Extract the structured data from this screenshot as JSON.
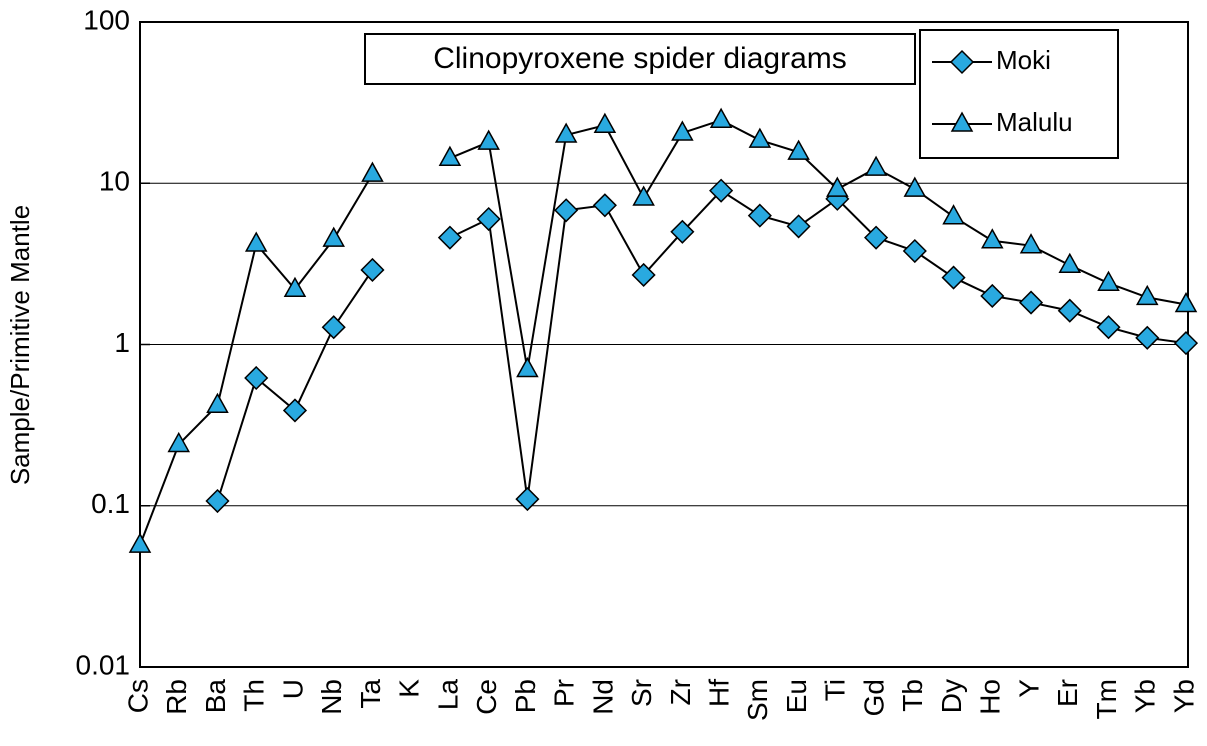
{
  "chart_data": {
    "type": "line",
    "title": "Clinopyroxene spider diagrams",
    "y_label": "Sample/Primitive Mantle",
    "categories": [
      "Cs",
      "Rb",
      "Ba",
      "Th",
      "U",
      "Nb",
      "Ta",
      "K",
      "La",
      "Ce",
      "Pb",
      "Pr",
      "Nd",
      "Sr",
      "Zr",
      "Hf",
      "Sm",
      "Eu",
      "Ti",
      "Gd",
      "Tb",
      "Dy",
      "Ho",
      "Y",
      "Er",
      "Tm",
      "Yb",
      "Yb"
    ],
    "series": [
      {
        "name": "Moki",
        "color": "#29a9e0",
        "marker": "diamond",
        "values": [
          null,
          null,
          0.107,
          0.62,
          0.39,
          1.28,
          2.9,
          null,
          4.6,
          6.0,
          0.11,
          6.8,
          7.3,
          2.7,
          5.0,
          9.0,
          6.3,
          5.4,
          8.0,
          4.6,
          3.8,
          2.6,
          2.0,
          1.82,
          1.62,
          1.28,
          1.1,
          1.02
        ]
      },
      {
        "name": "Malulu",
        "color": "#29a9e0",
        "marker": "triangle",
        "values": [
          0.057,
          0.24,
          0.42,
          4.2,
          2.2,
          4.5,
          11.4,
          null,
          14.3,
          18,
          0.7,
          19.9,
          22.9,
          8.1,
          20.5,
          24.6,
          18.5,
          15.6,
          9.2,
          12.4,
          9.2,
          6.2,
          4.4,
          4.1,
          3.1,
          2.4,
          1.96,
          1.77
        ]
      }
    ],
    "ylim": [
      0.01,
      100
    ],
    "yticks": [
      0.01,
      0.1,
      1,
      10,
      100
    ],
    "log_y": true,
    "grid": true,
    "legend": "upper right"
  }
}
